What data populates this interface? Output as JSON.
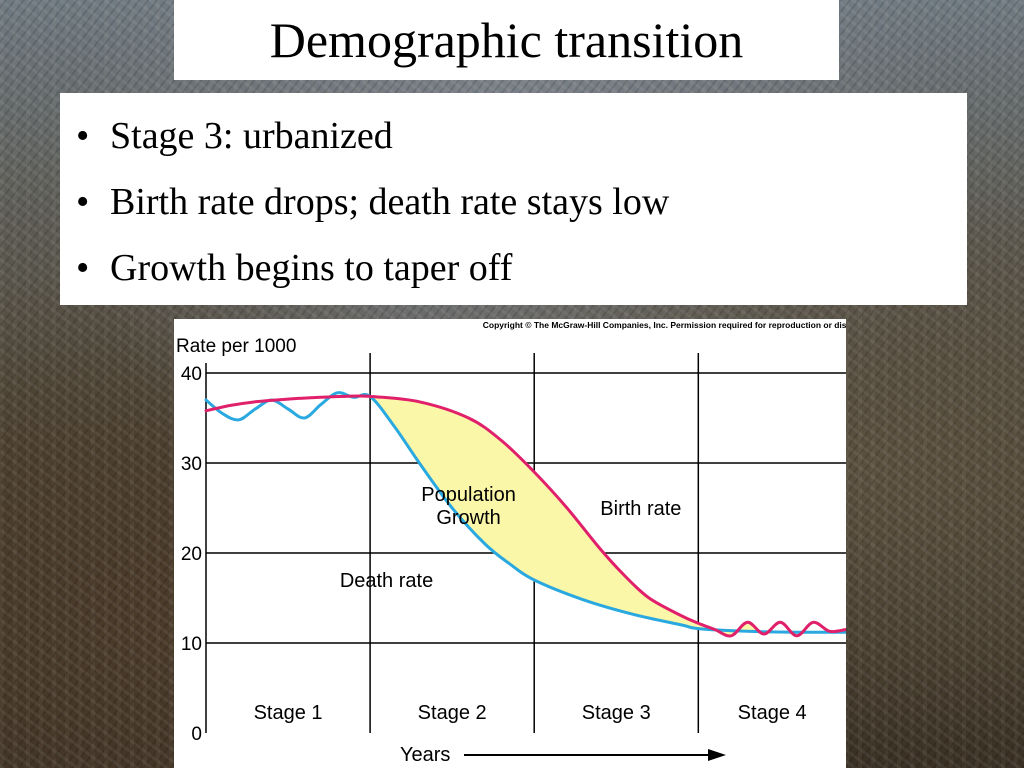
{
  "slide": {
    "title": "Demographic transition",
    "bullets": [
      "Stage 3: urbanized",
      "Birth rate drops; death rate stays low",
      "Growth begins to taper off"
    ]
  },
  "chart_data": {
    "type": "line",
    "copyright": "Copyright © The McGraw-Hill Companies, Inc. Permission required for reproduction or display.",
    "ylabel": "Rate per 1000",
    "xlabel": "Years",
    "ylim": [
      0,
      40
    ],
    "yticks": [
      0,
      10,
      20,
      30,
      40
    ],
    "stages": [
      "Stage 1",
      "Stage 2",
      "Stage 3",
      "Stage 4"
    ],
    "stage_bounds": [
      0,
      1,
      2,
      3,
      3.9
    ],
    "grid": true,
    "series": [
      {
        "name": "Birth rate",
        "color": "#e0206a",
        "x": [
          0.0,
          0.15,
          0.3,
          0.5,
          0.7,
          0.85,
          1.0,
          1.3,
          1.6,
          1.8,
          2.0,
          2.2,
          2.4,
          2.55,
          2.7,
          2.9,
          3.0,
          3.1,
          3.2,
          3.3,
          3.4,
          3.5,
          3.6,
          3.7,
          3.8,
          3.9
        ],
        "values": [
          35.8,
          36.4,
          36.8,
          37.1,
          37.3,
          37.4,
          37.4,
          36.8,
          35.0,
          32.5,
          29.0,
          25.0,
          20.5,
          17.5,
          15.0,
          13.0,
          12.2,
          11.5,
          10.8,
          12.3,
          11.0,
          12.3,
          10.8,
          12.3,
          11.3,
          11.5
        ]
      },
      {
        "name": "Death rate",
        "color": "#2aa8e0",
        "x": [
          0.0,
          0.1,
          0.2,
          0.3,
          0.4,
          0.5,
          0.6,
          0.7,
          0.8,
          0.9,
          1.0,
          1.15,
          1.3,
          1.5,
          1.7,
          1.85,
          2.0,
          2.3,
          2.6,
          2.9,
          3.0,
          3.3,
          3.6,
          3.9
        ],
        "values": [
          37.0,
          35.5,
          34.8,
          36.0,
          37.0,
          36.0,
          35.0,
          36.5,
          37.8,
          37.3,
          37.4,
          34.0,
          30.0,
          25.0,
          21.0,
          18.8,
          17.0,
          14.8,
          13.2,
          12.0,
          11.6,
          11.3,
          11.2,
          11.2
        ]
      }
    ],
    "annotations": [
      {
        "text": "Population",
        "x": 1.6,
        "y": 25.8
      },
      {
        "text": "Growth",
        "x": 1.6,
        "y": 23.2
      },
      {
        "text": "Birth rate",
        "x": 2.65,
        "y": 24.2
      },
      {
        "text": "Death rate",
        "x": 1.1,
        "y": 16.2
      }
    ],
    "fill_between": {
      "color": "#fbf7a8",
      "from": 1.0,
      "to": 3.0
    }
  }
}
